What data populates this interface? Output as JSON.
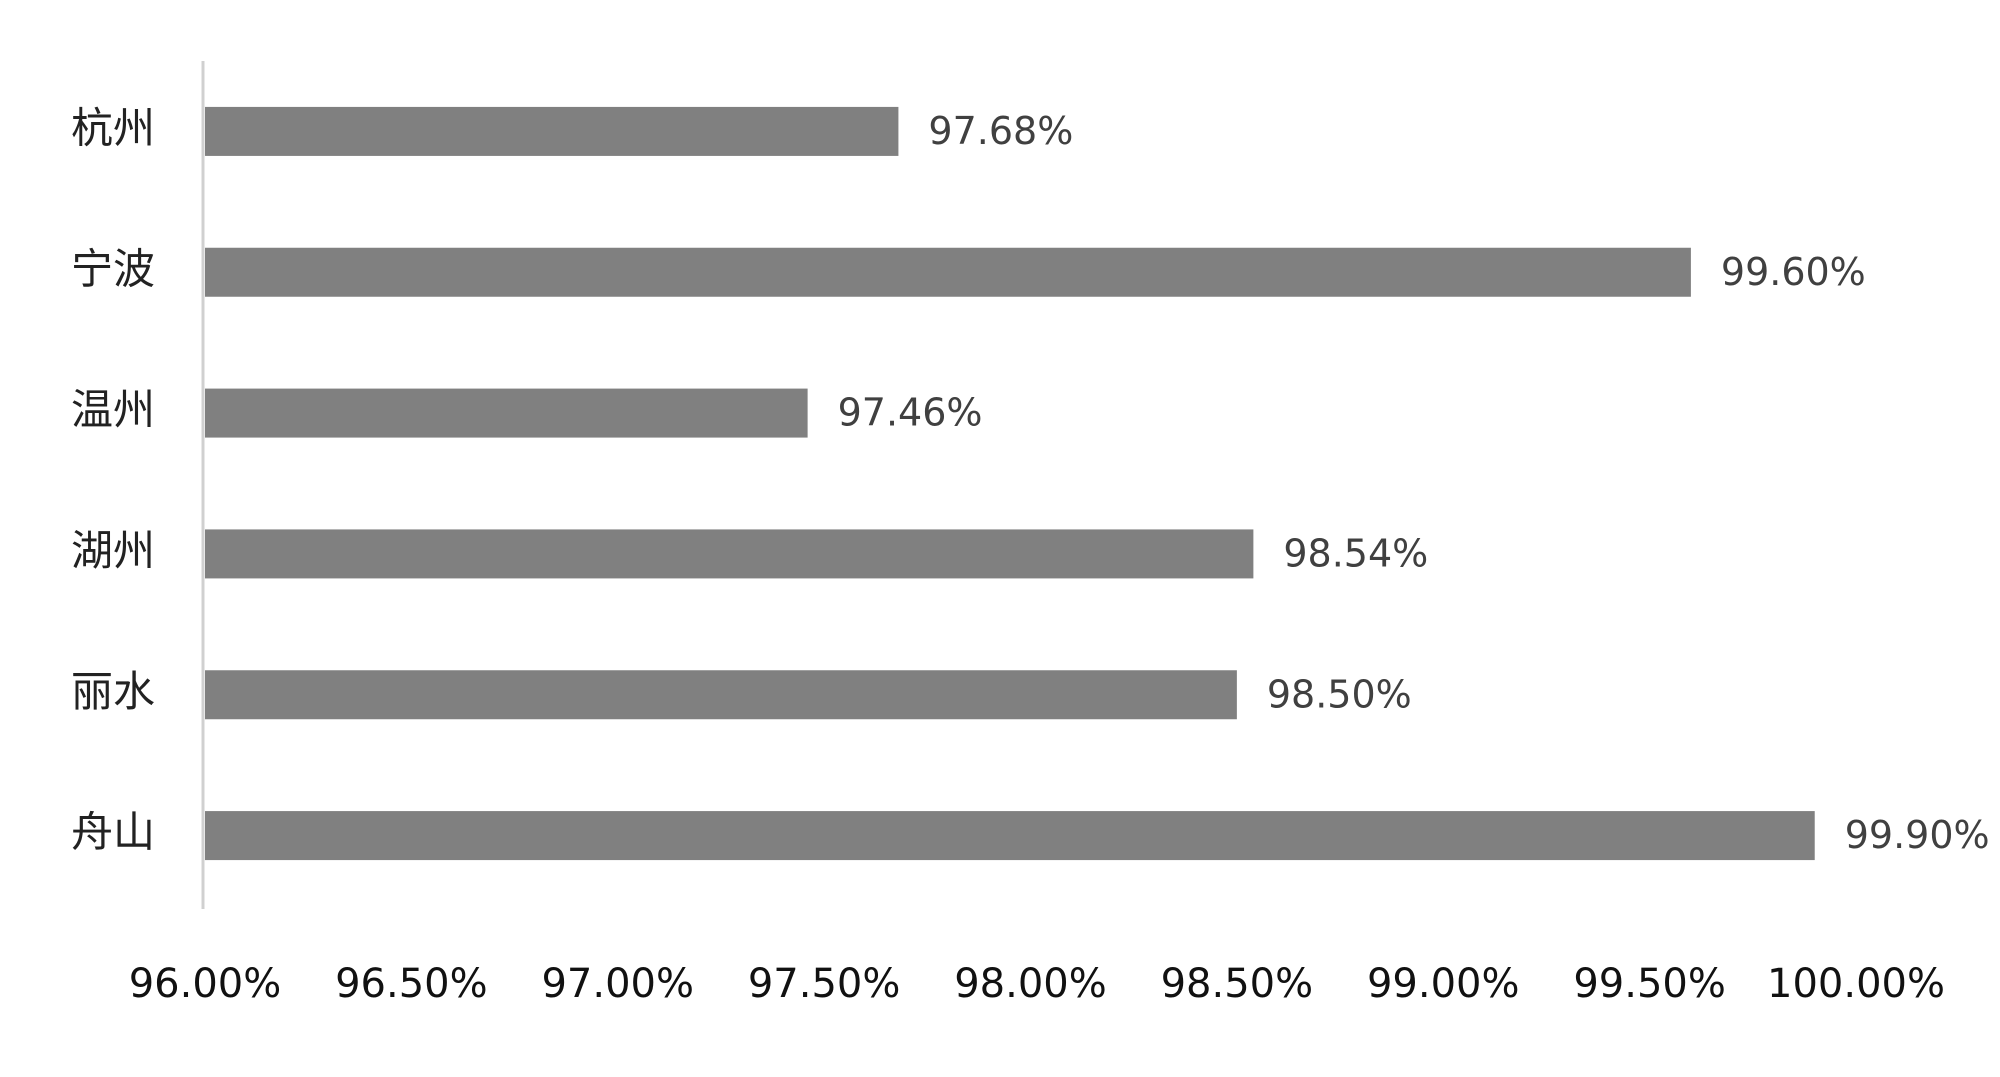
{
  "chart_data": {
    "type": "hbar",
    "categories": [
      "杭州",
      "宁波",
      "温州",
      "湖州",
      "丽水",
      "舟山"
    ],
    "values": [
      97.68,
      99.6,
      97.46,
      98.54,
      98.5,
      99.9
    ],
    "value_labels": [
      "97.68%",
      "99.60%",
      "97.46%",
      "98.54%",
      "98.50%",
      "99.90%"
    ],
    "color": "#808080",
    "xlim": [
      96,
      100
    ],
    "xticks": [
      {
        "value": 96,
        "label": "96.00%"
      },
      {
        "value": 96.5,
        "label": "96.50%"
      },
      {
        "value": 97,
        "label": "97.00%"
      },
      {
        "value": 97.5,
        "label": "97.50%"
      },
      {
        "value": 98,
        "label": "98.00%"
      },
      {
        "value": 98.5,
        "label": "98.50%"
      },
      {
        "value": 99,
        "label": "99.00%"
      },
      {
        "value": 99.5,
        "label": "99.50%"
      },
      {
        "value": 100,
        "label": "100.00%"
      }
    ],
    "grid": false
  }
}
